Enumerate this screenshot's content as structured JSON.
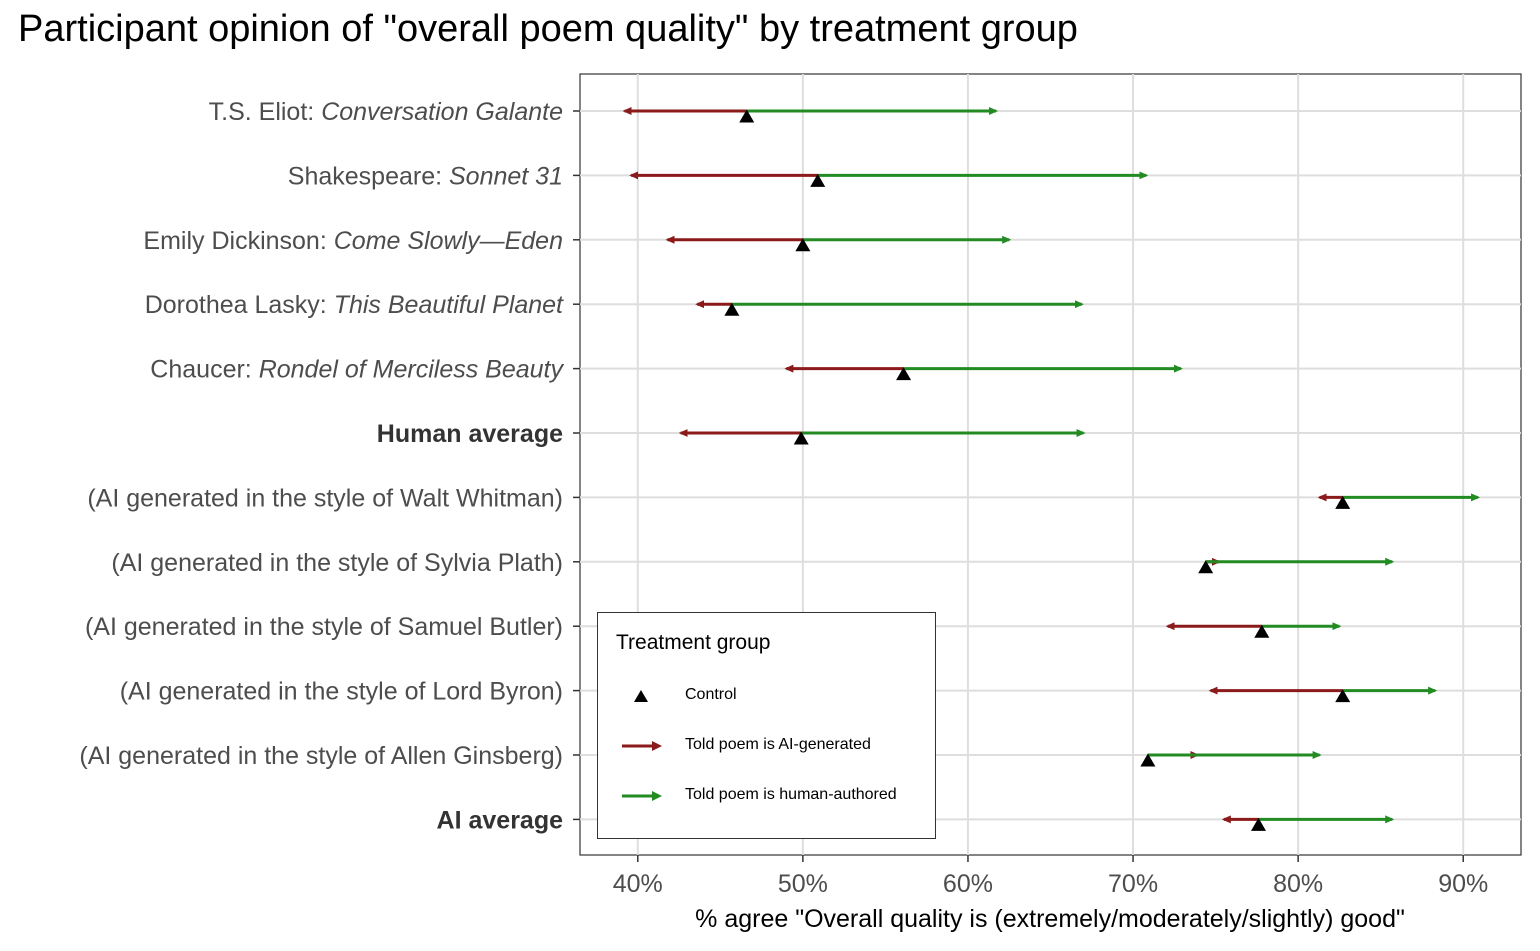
{
  "title": "Participant opinion of \"overall poem quality\" by treatment group",
  "chart_data": {
    "type": "dumbbell-arrow",
    "title": "Participant opinion of \"overall poem quality\" by treatment group",
    "xlabel": "% agree \"Overall quality is (extremely/moderately/slightly) good\"",
    "ylabel": "",
    "xlim": [
      36.5,
      93.5
    ],
    "xticks": [
      40,
      50,
      60,
      70,
      80,
      90
    ],
    "xtick_labels": [
      "40%",
      "50%",
      "60%",
      "70%",
      "80%",
      "90%"
    ],
    "grid": true,
    "legend_position": "bottom-left inside",
    "colors": {
      "control": "#000000",
      "ai_generated": "#8b1a1a",
      "human_authored": "#228b22"
    },
    "categories": [
      {
        "author": "T.S. Eliot: ",
        "work": "Conversation Galante",
        "style": "italic"
      },
      {
        "author": "Shakespeare: ",
        "work": "Sonnet 31",
        "style": "italic"
      },
      {
        "author": "Emily Dickinson: ",
        "work": "Come Slowly—Eden",
        "style": "italic"
      },
      {
        "author": "Dorothea Lasky: ",
        "work": "This Beautiful Planet",
        "style": "italic"
      },
      {
        "author": "Chaucer: ",
        "work": "Rondel of Merciless Beauty",
        "style": "italic"
      },
      {
        "author": "Human average",
        "work": "",
        "style": "bold"
      },
      {
        "author": "(AI generated in the style of Walt Whitman)",
        "work": "",
        "style": "plain"
      },
      {
        "author": "(AI generated in the style of Sylvia Plath)",
        "work": "",
        "style": "plain"
      },
      {
        "author": "(AI generated in the style of Samuel Butler)",
        "work": "",
        "style": "plain"
      },
      {
        "author": "(AI generated in the style of Lord Byron)",
        "work": "",
        "style": "plain"
      },
      {
        "author": "(AI generated in the style of Allen Ginsberg)",
        "work": "",
        "style": "plain"
      },
      {
        "author": "AI average",
        "work": "",
        "style": "bold"
      }
    ],
    "series": [
      {
        "name": "Control",
        "values": [
          46.6,
          50.9,
          50.0,
          45.7,
          56.1,
          49.9,
          82.7,
          74.4,
          77.8,
          82.7,
          70.9,
          77.6
        ]
      },
      {
        "name": "Told poem is AI-generated",
        "values": [
          39.2,
          39.6,
          41.8,
          43.6,
          49.0,
          42.6,
          81.3,
          75.2,
          72.1,
          74.7,
          73.9,
          75.5
        ]
      },
      {
        "name": "Told poem is human-authored",
        "values": [
          61.7,
          70.8,
          62.5,
          66.9,
          72.9,
          67.0,
          90.9,
          85.7,
          82.5,
          88.3,
          81.3,
          85.7
        ]
      }
    ]
  },
  "legend": {
    "title": "Treatment group",
    "items": [
      {
        "label": "Control"
      },
      {
        "label": "Told poem is AI-generated"
      },
      {
        "label": "Told poem is human-authored"
      }
    ]
  }
}
